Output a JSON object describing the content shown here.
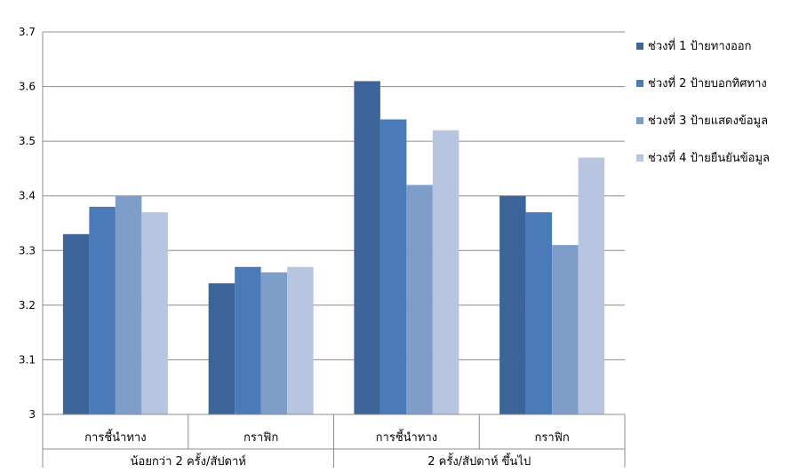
{
  "chart_data": {
    "type": "bar",
    "title": "",
    "xlabel": "",
    "ylabel": "",
    "ylim": [
      3,
      3.7
    ],
    "yticks": [
      "3",
      "3.1",
      "3.2",
      "3.3",
      "3.4",
      "3.5",
      "3.6",
      "3.7"
    ],
    "grid": true,
    "legend_position": "right",
    "groups": [
      {
        "label": "น้อยกว่า 2 ครั้ง/สัปดาห์",
        "categories": [
          "การชี้นำทาง",
          "กราฟิก"
        ]
      },
      {
        "label": "2 ครั้ง/สัปดาห์ ขึ้นไป",
        "categories": [
          "การชี้นำทาง",
          "กราฟิก"
        ]
      }
    ],
    "categories": [
      "การชี้นำทาง",
      "กราฟิก",
      "การชี้นำทาง",
      "กราฟิก"
    ],
    "series": [
      {
        "name": "ช่วงที่ 1 ป้ายทางออก",
        "color": "#3d6499",
        "values": [
          3.33,
          3.24,
          3.61,
          3.4
        ]
      },
      {
        "name": "ช่วงที่ 2 ป้ายบอกทิศทาง",
        "color": "#4a7ab8",
        "values": [
          3.38,
          3.27,
          3.54,
          3.37
        ]
      },
      {
        "name": "ช่วงที่  3 ป้ายแสดงข้อมูล",
        "color": "#7f9dc9",
        "values": [
          3.4,
          3.26,
          3.42,
          3.31
        ]
      },
      {
        "name": "ช่วงที่  4 ป้ายยืนยันข้อมูล",
        "color": "#b7c5e0",
        "values": [
          3.37,
          3.27,
          3.52,
          3.47
        ]
      }
    ]
  }
}
